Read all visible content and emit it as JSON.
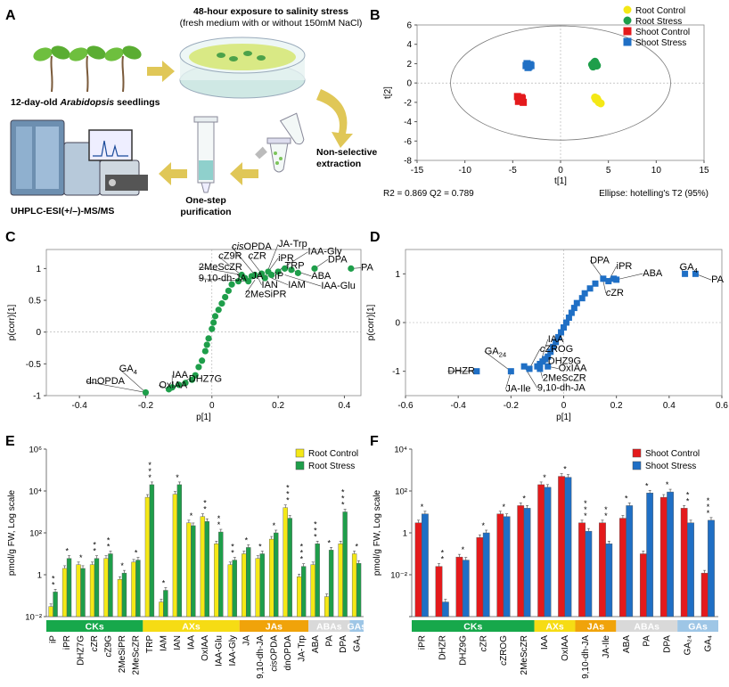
{
  "panel_letters": {
    "a": "A",
    "b": "B",
    "c": "C",
    "d": "D",
    "e": "E",
    "f": "F"
  },
  "workflow": {
    "title": "48-hour exposure to salinity stress",
    "subtitle": "(fresh medium with or without 150mM NaCl)",
    "seedlings_pre": "12-day-old ",
    "seedlings_italic": "Arabidopsis",
    "seedlings_post": " seedlings",
    "extraction_1": "Non-selective",
    "extraction_2": "extraction",
    "purification_1": "One-step",
    "purification_2": "purification",
    "instrument": "UHPLC-ESI(+/–)-MS/MS"
  },
  "colors": {
    "root_control": "#f4e816",
    "root_stress": "#1e9e4a",
    "shoot_control": "#e41a1c",
    "shoot_stress": "#1f6fc5",
    "cks": "#17a84b",
    "axs": "#f6dc14",
    "jas": "#f0a30a",
    "abas": "#d9d9d9",
    "gas": "#9ec6e6",
    "arrow": "#e0c757"
  },
  "chart_data": [
    {
      "id": "B",
      "type": "scatter",
      "xlabel": "t[1]",
      "ylabel": "t[2]",
      "xlim": [
        -15,
        15
      ],
      "ylim": [
        -8,
        6
      ],
      "xticks": [
        -15,
        -10,
        -5,
        0,
        5,
        10,
        15
      ],
      "yticks": [
        -8,
        -6,
        -4,
        -2,
        0,
        2,
        4,
        6
      ],
      "ellipse": {
        "rx": 11.5,
        "ry": 5.9
      },
      "stats_left": "R2 = 0.869   Q2 = 0.789",
      "stats_right": "Ellipse: hotelling's T2 (95%)",
      "legend": [
        "Root Control",
        "Root Stress",
        "Shoot Control",
        "Shoot Stress"
      ],
      "series": [
        {
          "name": "Root Control",
          "marker": "circle",
          "color": "#f4e816",
          "points": [
            [
              3.6,
              -1.5
            ],
            [
              3.9,
              -1.8
            ],
            [
              4.0,
              -2.0
            ],
            [
              3.7,
              -1.7
            ],
            [
              4.2,
              -2.1
            ],
            [
              3.8,
              -1.6
            ]
          ]
        },
        {
          "name": "Root Stress",
          "marker": "circle",
          "color": "#1e9e4a",
          "points": [
            [
              3.3,
              1.9
            ],
            [
              3.6,
              2.2
            ],
            [
              3.8,
              1.8
            ],
            [
              3.5,
              2.1
            ],
            [
              3.7,
              2.0
            ],
            [
              3.4,
              1.7
            ]
          ]
        },
        {
          "name": "Shoot Control",
          "marker": "square",
          "color": "#e41a1c",
          "points": [
            [
              -4.5,
              -1.4
            ],
            [
              -4.2,
              -1.8
            ],
            [
              -4.0,
              -1.6
            ],
            [
              -4.4,
              -1.9
            ],
            [
              -4.1,
              -1.5
            ],
            [
              -3.9,
              -2.0
            ]
          ]
        },
        {
          "name": "Shoot Stress",
          "marker": "square",
          "color": "#1f6fc5",
          "points": [
            [
              -3.6,
              1.8
            ],
            [
              -3.3,
              1.7
            ],
            [
              -3.5,
              2.0
            ],
            [
              -3.2,
              1.9
            ],
            [
              -3.4,
              1.6
            ],
            [
              -3.1,
              1.8
            ]
          ]
        }
      ]
    },
    {
      "id": "C",
      "type": "scatter",
      "xlabel": "p[1]",
      "ylabel": "p(corr)[1]",
      "xlim": [
        -0.5,
        0.45
      ],
      "ylim": [
        -1,
        1.3
      ],
      "xticks": [
        -0.4,
        -0.2,
        0,
        0.2,
        0.4
      ],
      "yticks": [
        -1,
        -0.5,
        0,
        0.5,
        1
      ],
      "color": "#1e9e4a",
      "marker": "circle",
      "points": [
        [
          -0.2,
          -0.95
        ],
        [
          -0.12,
          -0.87
        ],
        [
          -0.1,
          -0.83
        ],
        [
          -0.08,
          -0.8
        ],
        [
          -0.06,
          -0.75
        ],
        [
          -0.05,
          -0.68
        ],
        [
          -0.04,
          -0.55
        ],
        [
          -0.03,
          -0.45
        ],
        [
          -0.02,
          -0.3
        ],
        [
          -0.015,
          -0.2
        ],
        [
          -0.01,
          -0.1
        ],
        [
          0.0,
          0.05
        ],
        [
          0.005,
          0.15
        ],
        [
          0.01,
          0.25
        ],
        [
          0.02,
          0.35
        ],
        [
          0.03,
          0.45
        ],
        [
          0.04,
          0.55
        ],
        [
          0.05,
          0.65
        ],
        [
          0.06,
          0.75
        ],
        [
          0.08,
          0.8
        ],
        [
          0.1,
          0.85
        ],
        [
          0.12,
          0.88
        ],
        [
          0.13,
          0.9
        ],
        [
          0.15,
          0.92
        ],
        [
          0.16,
          0.85
        ],
        [
          0.17,
          0.95
        ],
        [
          0.18,
          0.9
        ],
        [
          0.2,
          0.95
        ],
        [
          0.22,
          1.0
        ],
        [
          0.24,
          0.98
        ],
        [
          0.26,
          0.93
        ],
        [
          0.31,
          1.0
        ],
        [
          0.42,
          1.0
        ],
        [
          -0.13,
          -0.9
        ],
        [
          0.09,
          0.9
        ],
        [
          0.11,
          0.8
        ]
      ],
      "labels": [
        {
          "text": "GA",
          "sub": "4",
          "px": -0.2,
          "py": -0.95,
          "tx": -0.28,
          "ty": -0.62
        },
        {
          "text": "dnOPDA",
          "px": -0.2,
          "py": -0.95,
          "tx": -0.38,
          "ty": -0.82
        },
        {
          "text": "IAA",
          "px": -0.12,
          "py": -0.87,
          "tx": -0.12,
          "ty": -0.72
        },
        {
          "text": "DHZ7G",
          "px": -0.1,
          "py": -0.83,
          "tx": -0.07,
          "ty": -0.78
        },
        {
          "text": "OxIAA",
          "px": -0.13,
          "py": -0.9,
          "tx": -0.16,
          "ty": -0.88
        },
        {
          "text": "cisOPDA",
          "italic_prefix": "cis",
          "px": 0.13,
          "py": 0.9,
          "tx": 0.06,
          "ty": 1.3
        },
        {
          "text": "cZ9R",
          "italic_prefix": "c",
          "px": 0.1,
          "py": 0.85,
          "tx": 0.02,
          "ty": 1.15
        },
        {
          "text": "2MeScZR",
          "px": 0.09,
          "py": 0.9,
          "tx": -0.04,
          "ty": 0.98
        },
        {
          "text": "9,10-dh-JA",
          "px": 0.11,
          "py": 0.8,
          "tx": -0.04,
          "ty": 0.8
        },
        {
          "text": "JA-Trp",
          "px": 0.16,
          "py": 0.85,
          "tx": 0.2,
          "ty": 1.34
        },
        {
          "text": "cZR",
          "italic_prefix": "c",
          "px": 0.15,
          "py": 0.92,
          "tx": 0.11,
          "ty": 1.15
        },
        {
          "text": "iPR",
          "px": 0.17,
          "py": 0.95,
          "tx": 0.2,
          "ty": 1.12
        },
        {
          "text": "IAA-Gly",
          "px": 0.18,
          "py": 0.9,
          "tx": 0.29,
          "ty": 1.22
        },
        {
          "text": "TRP",
          "px": 0.2,
          "py": 0.95,
          "tx": 0.22,
          "ty": 1.0
        },
        {
          "text": "DPA",
          "px": 0.31,
          "py": 1.0,
          "tx": 0.35,
          "ty": 1.1
        },
        {
          "text": "PA",
          "px": 0.42,
          "py": 1.0,
          "tx": 0.45,
          "ty": 0.97
        },
        {
          "text": "JA",
          "px": 0.13,
          "py": 0.9,
          "tx": 0.12,
          "ty": 0.84
        },
        {
          "text": "iP",
          "px": 0.15,
          "py": 0.88,
          "tx": 0.19,
          "ty": 0.84
        },
        {
          "text": "ABA",
          "px": 0.24,
          "py": 0.98,
          "tx": 0.3,
          "ty": 0.84
        },
        {
          "text": "IAN",
          "px": 0.14,
          "py": 0.85,
          "tx": 0.15,
          "ty": 0.7
        },
        {
          "text": "IAM",
          "px": 0.18,
          "py": 0.85,
          "tx": 0.23,
          "ty": 0.7
        },
        {
          "text": "IAA-Glu",
          "px": 0.22,
          "py": 0.9,
          "tx": 0.33,
          "ty": 0.68
        },
        {
          "text": "2MeSiPR",
          "px": 0.13,
          "py": 0.82,
          "tx": 0.1,
          "ty": 0.55
        }
      ]
    },
    {
      "id": "D",
      "type": "scatter",
      "xlabel": "p[1]",
      "ylabel": "p(corr)[1]",
      "xlim": [
        -0.6,
        0.6
      ],
      "ylim": [
        -1.5,
        1.5
      ],
      "xticks": [
        -0.6,
        -0.4,
        -0.2,
        0,
        0.2,
        0.4,
        0.6
      ],
      "yticks": [
        -1,
        0,
        1
      ],
      "color": "#1f6fc5",
      "marker": "square",
      "points": [
        [
          -0.33,
          -1.0
        ],
        [
          -0.2,
          -1.0
        ],
        [
          -0.15,
          -0.9
        ],
        [
          -0.13,
          -0.95
        ],
        [
          -0.1,
          -0.9
        ],
        [
          -0.09,
          -0.85
        ],
        [
          -0.08,
          -0.8
        ],
        [
          -0.07,
          -0.75
        ],
        [
          -0.06,
          -0.7
        ],
        [
          -0.05,
          -0.6
        ],
        [
          -0.04,
          -0.5
        ],
        [
          -0.03,
          -0.4
        ],
        [
          -0.02,
          -0.3
        ],
        [
          -0.01,
          -0.2
        ],
        [
          0.0,
          -0.1
        ],
        [
          0.01,
          0.0
        ],
        [
          0.02,
          0.1
        ],
        [
          0.03,
          0.2
        ],
        [
          0.04,
          0.3
        ],
        [
          0.05,
          0.4
        ],
        [
          0.07,
          0.5
        ],
        [
          0.08,
          0.6
        ],
        [
          0.1,
          0.7
        ],
        [
          0.12,
          0.8
        ],
        [
          0.15,
          0.9
        ],
        [
          0.17,
          0.85
        ],
        [
          0.19,
          0.9
        ],
        [
          0.2,
          0.88
        ],
        [
          0.46,
          1.0
        ],
        [
          0.5,
          1.0
        ],
        [
          -0.09,
          -0.95
        ],
        [
          -0.06,
          -0.9
        ]
      ],
      "labels": [
        {
          "text": "DPA",
          "px": 0.15,
          "py": 0.9,
          "tx": 0.1,
          "ty": 1.22
        },
        {
          "text": "iPR",
          "px": 0.17,
          "py": 0.85,
          "tx": 0.2,
          "ty": 1.1
        },
        {
          "text": "ABA",
          "px": 0.2,
          "py": 0.88,
          "tx": 0.3,
          "ty": 0.95
        },
        {
          "text": "GA",
          "sub": "4",
          "px": 0.46,
          "py": 1.0,
          "tx": 0.44,
          "ty": 1.08
        },
        {
          "text": "PA",
          "px": 0.5,
          "py": 1.0,
          "tx": 0.56,
          "ty": 0.82
        },
        {
          "text": "cZR",
          "italic_prefix": "c",
          "px": 0.15,
          "py": 0.85,
          "tx": 0.16,
          "ty": 0.55
        },
        {
          "text": "IAA",
          "px": -0.09,
          "py": -0.85,
          "tx": -0.06,
          "ty": -0.4
        },
        {
          "text": "GA",
          "sub": "24",
          "px": -0.2,
          "py": -1.0,
          "tx": -0.3,
          "ty": -0.65
        },
        {
          "text": "cZROG",
          "italic_prefix": "c",
          "px": -0.13,
          "py": -0.95,
          "tx": -0.09,
          "ty": -0.6
        },
        {
          "text": "DHZ9G",
          "px": -0.1,
          "py": -0.9,
          "tx": -0.06,
          "ty": -0.85
        },
        {
          "text": "OxIAA",
          "px": -0.06,
          "py": -0.9,
          "tx": -0.02,
          "ty": -1.0
        },
        {
          "text": "DHZR",
          "px": -0.33,
          "py": -1.0,
          "tx": -0.44,
          "ty": -1.05
        },
        {
          "text": "2MeScZR",
          "px": -0.09,
          "py": -0.95,
          "tx": -0.08,
          "ty": -1.2
        },
        {
          "text": "JA-Ile",
          "px": -0.2,
          "py": -1.0,
          "tx": -0.22,
          "ty": -1.42
        },
        {
          "text": "9,10-dh-JA",
          "px": -0.15,
          "py": -0.9,
          "tx": -0.1,
          "ty": -1.4
        }
      ]
    },
    {
      "id": "E",
      "type": "bar",
      "scale": "log",
      "ylabel": "pmol/g FW, Log scale",
      "ylim_exp": [
        -2,
        6
      ],
      "yticks_exp": [
        -2,
        0,
        2,
        4,
        6
      ],
      "yticks_labels": [
        "10⁻²",
        "1",
        "10²",
        "10⁴",
        "10⁶"
      ],
      "legend": [
        "Root Control",
        "Root Stress"
      ],
      "categories": [
        "iP",
        "iPR",
        "DHZ7G",
        "cZR",
        "cZ9G",
        "2MeSiPR",
        "2MeScZR",
        "TRP",
        "IAM",
        "IAN",
        "IAA",
        "OxIAA",
        "IAA-Glu",
        "IAA-Gly",
        "JA",
        "9,10-dh-JA",
        "cisOPDA",
        "dnOPDA",
        "JA-Trp",
        "ABA",
        "PA",
        "DPA",
        "GA4"
      ],
      "category_labels": [
        "iP",
        "iPR",
        "DHZ7G",
        "cZR",
        "cZ9G",
        "2MeSiPR",
        "2MeScZR",
        "TRP",
        "IAM",
        "IAN",
        "IAA",
        "OxIAA",
        "IAA-Glu",
        "IAA-Gly",
        "JA",
        "9,10-dh-JA",
        "cisOPDA",
        "dnOPDA",
        "JA-Trp",
        "ABA",
        "PA",
        "DPA",
        "GA₄"
      ],
      "series": [
        {
          "name": "Root Control",
          "values": [
            0.03,
            2.0,
            3.0,
            3.0,
            6.0,
            0.6,
            4.0,
            5000,
            0.05,
            7000,
            300,
            600,
            30,
            3,
            10,
            6,
            50,
            1600,
            0.8,
            3,
            0.09,
            30,
            10
          ]
        },
        {
          "name": "Root Stress",
          "values": [
            0.15,
            6.0,
            2.0,
            6.0,
            10.0,
            1.2,
            5.0,
            20000,
            0.18,
            20000,
            220,
            350,
            110,
            5,
            20,
            10,
            100,
            500,
            2.5,
            30,
            15,
            1000,
            3.5
          ]
        }
      ],
      "stars": [
        "**",
        "*",
        "*",
        "**",
        "**",
        "*",
        "*",
        "***",
        "*",
        "*",
        "*",
        "**",
        "**",
        "**",
        "*",
        "*",
        "*",
        "***",
        "***",
        "***",
        "*",
        "***",
        "*"
      ],
      "groups": [
        {
          "label": "CKs",
          "from": 0,
          "to": 6,
          "color": "#17a84b",
          "text": "#ffffff"
        },
        {
          "label": "AXs",
          "from": 7,
          "to": 13,
          "color": "#f6dc14",
          "text": "#ffffff"
        },
        {
          "label": "JAs",
          "from": 14,
          "to": 18,
          "color": "#f0a30a",
          "text": "#ffffff"
        },
        {
          "label": "ABAs",
          "from": 19,
          "to": 21,
          "color": "#d9d9d9",
          "text": "#ffffff"
        },
        {
          "label": "GAs",
          "from": 22,
          "to": 22,
          "color": "#9ec6e6",
          "text": "#ffffff"
        }
      ]
    },
    {
      "id": "F",
      "type": "bar",
      "scale": "log",
      "ylabel": "pmol/g FW, Log scale",
      "ylim_exp": [
        -4,
        4
      ],
      "yticks_exp": [
        -4,
        -2,
        0,
        2,
        4
      ],
      "yticks_labels": [
        "",
        "10⁻²",
        "1",
        "10²",
        "10⁴"
      ],
      "legend": [
        "Shoot Control",
        "Shoot Stress"
      ],
      "categories": [
        "iPR",
        "DHZR",
        "DHZ9G",
        "cZR",
        "cZROG",
        "2MeScZR",
        "IAA",
        "OxIAA",
        "9,10-dh-JA",
        "JA-Ile",
        "ABA",
        "PA",
        "DPA",
        "GA24",
        "GA4"
      ],
      "category_labels": [
        "iPR",
        "DHZR",
        "DHZ9G",
        "cZR",
        "cZROG",
        "2MeScZR",
        "IAA",
        "OxIAA",
        "9,10-dh-JA",
        "JA-Ile",
        "ABA",
        "PA",
        "DPA",
        "GA₂₄",
        "GA₄"
      ],
      "series": [
        {
          "name": "Shoot Control",
          "values": [
            3,
            0.025,
            0.07,
            0.6,
            8,
            20,
            200,
            500,
            3,
            3,
            5,
            0.1,
            50,
            15,
            0.012
          ]
        },
        {
          "name": "Shoot Stress",
          "values": [
            8,
            0.0005,
            0.05,
            1.0,
            6,
            15,
            150,
            450,
            1.2,
            0.3,
            20,
            80,
            90,
            3,
            4
          ]
        }
      ],
      "stars": [
        "*",
        "**",
        "*",
        "*",
        "*",
        "*",
        "*",
        "*",
        "***",
        "**",
        "*",
        "*",
        "*",
        "**",
        "***"
      ],
      "groups": [
        {
          "label": "CKs",
          "from": 0,
          "to": 5,
          "color": "#17a84b",
          "text": "#ffffff"
        },
        {
          "label": "AXs",
          "from": 6,
          "to": 7,
          "color": "#f6dc14",
          "text": "#ffffff"
        },
        {
          "label": "JAs",
          "from": 8,
          "to": 9,
          "color": "#f0a30a",
          "text": "#ffffff"
        },
        {
          "label": "ABAs",
          "from": 10,
          "to": 12,
          "color": "#d9d9d9",
          "text": "#ffffff"
        },
        {
          "label": "GAs",
          "from": 13,
          "to": 14,
          "color": "#9ec6e6",
          "text": "#ffffff"
        }
      ]
    }
  ]
}
